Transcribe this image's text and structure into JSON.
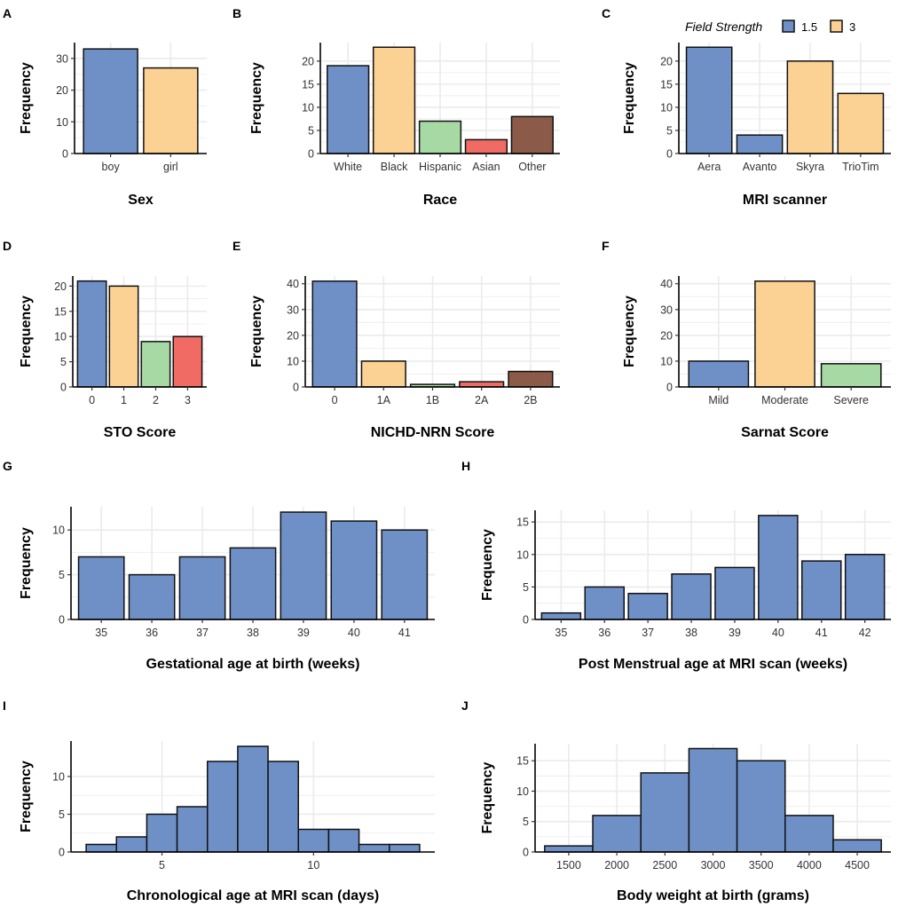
{
  "colors": {
    "blue": "#6f90c7",
    "orange": "#fcd194",
    "green": "#a6d9a3",
    "red": "#ef6b64",
    "brown": "#8c5a48"
  },
  "legend": {
    "title": "Field Strength",
    "items": [
      {
        "label": "1.5",
        "color": "blue"
      },
      {
        "label": "3",
        "color": "orange"
      }
    ]
  },
  "chart_data": [
    {
      "panel": "A",
      "type": "bar",
      "xlabel": "Sex",
      "ylabel": "Frequency",
      "categories": [
        "boy",
        "girl"
      ],
      "values": [
        33,
        27
      ],
      "colors": [
        "blue",
        "orange"
      ],
      "ylim": [
        0,
        35
      ],
      "yticks": [
        0,
        10,
        20,
        30
      ]
    },
    {
      "panel": "B",
      "type": "bar",
      "xlabel": "Race",
      "ylabel": "Frequency",
      "categories": [
        "White",
        "Black",
        "Hispanic",
        "Asian",
        "Other"
      ],
      "values": [
        19,
        23,
        7,
        3,
        8
      ],
      "colors": [
        "blue",
        "orange",
        "green",
        "red",
        "brown"
      ],
      "ylim": [
        0,
        24
      ],
      "yticks": [
        0,
        5,
        10,
        15,
        20
      ]
    },
    {
      "panel": "C",
      "type": "bar",
      "xlabel": "MRI scanner",
      "ylabel": "Frequency",
      "categories": [
        "Aera",
        "Avanto",
        "Skyra",
        "TrioTim"
      ],
      "values": [
        23,
        4,
        20,
        13
      ],
      "colors": [
        "blue",
        "blue",
        "orange",
        "orange"
      ],
      "ylim": [
        0,
        24
      ],
      "yticks": [
        0,
        5,
        10,
        15,
        20
      ]
    },
    {
      "panel": "D",
      "type": "bar",
      "xlabel": "STO Score",
      "ylabel": "Frequency",
      "categories": [
        "0",
        "1",
        "2",
        "3"
      ],
      "values": [
        21,
        20,
        9,
        10
      ],
      "colors": [
        "blue",
        "orange",
        "green",
        "red"
      ],
      "ylim": [
        0,
        22
      ],
      "yticks": [
        0,
        5,
        10,
        15,
        20
      ]
    },
    {
      "panel": "E",
      "type": "bar",
      "xlabel": "NICHD-NRN Score",
      "ylabel": "Frequency",
      "categories": [
        "0",
        "1A",
        "1B",
        "2A",
        "2B"
      ],
      "values": [
        41,
        10,
        1,
        2,
        6
      ],
      "colors": [
        "blue",
        "orange",
        "green",
        "red",
        "brown"
      ],
      "ylim": [
        0,
        43
      ],
      "yticks": [
        0,
        10,
        20,
        30,
        40
      ]
    },
    {
      "panel": "F",
      "type": "bar",
      "xlabel": "Sarnat Score",
      "ylabel": "Frequency",
      "categories": [
        "Mild",
        "Moderate",
        "Severe"
      ],
      "values": [
        10,
        41,
        9
      ],
      "colors": [
        "blue",
        "orange",
        "green"
      ],
      "ylim": [
        0,
        43
      ],
      "yticks": [
        0,
        10,
        20,
        30,
        40
      ]
    },
    {
      "panel": "G",
      "type": "bar",
      "xlabel": "Gestational age at birth (weeks)",
      "ylabel": "Frequency",
      "categories": [
        "35",
        "36",
        "37",
        "38",
        "39",
        "40",
        "41"
      ],
      "values": [
        7,
        5,
        7,
        8,
        12,
        11,
        10
      ],
      "colors": [
        "blue"
      ],
      "ylim": [
        0,
        12.6
      ],
      "yticks": [
        0,
        5,
        10
      ]
    },
    {
      "panel": "H",
      "type": "bar",
      "xlabel": "Post Menstrual age at MRI scan (weeks)",
      "ylabel": "Frequency",
      "categories": [
        "35",
        "36",
        "37",
        "38",
        "39",
        "40",
        "41",
        "42"
      ],
      "values": [
        1,
        5,
        4,
        7,
        8,
        16,
        9,
        10
      ],
      "colors": [
        "blue"
      ],
      "ylim": [
        0,
        16.8
      ],
      "yticks": [
        0,
        5,
        10,
        15
      ]
    },
    {
      "panel": "I",
      "type": "histogram",
      "xlabel": "Chronological age at MRI scan (days)",
      "ylabel": "Frequency",
      "bins": [
        [
          2.5,
          3.5
        ],
        [
          3.5,
          4.5
        ],
        [
          4.5,
          5.5
        ],
        [
          5.5,
          6.5
        ],
        [
          6.5,
          7.5
        ],
        [
          7.5,
          8.5
        ],
        [
          8.5,
          9.5
        ],
        [
          9.5,
          10.5
        ],
        [
          10.5,
          11.5
        ],
        [
          11.5,
          12.5
        ],
        [
          12.5,
          13.5
        ]
      ],
      "values": [
        1,
        2,
        5,
        6,
        12,
        14,
        12,
        3,
        3,
        1,
        1
      ],
      "colors": [
        "blue"
      ],
      "xlim": [
        2,
        14
      ],
      "xticks": [
        5,
        10
      ],
      "ylim": [
        0,
        14.7
      ],
      "yticks": [
        0,
        5,
        10
      ]
    },
    {
      "panel": "J",
      "type": "histogram",
      "xlabel": "Body weight at birth (grams)",
      "ylabel": "Frequency",
      "bins": [
        [
          1250,
          1750
        ],
        [
          1750,
          2250
        ],
        [
          2250,
          2750
        ],
        [
          2750,
          3250
        ],
        [
          3250,
          3750
        ],
        [
          3750,
          4250
        ],
        [
          4250,
          4750
        ]
      ],
      "values": [
        1,
        6,
        13,
        17,
        15,
        6,
        2
      ],
      "colors": [
        "blue"
      ],
      "xlim": [
        1150,
        4850
      ],
      "xticks": [
        1500,
        2000,
        2500,
        3000,
        3500,
        4000,
        4500
      ],
      "ylim": [
        0,
        17.8
      ],
      "yticks": [
        0,
        5,
        10,
        15
      ]
    }
  ]
}
